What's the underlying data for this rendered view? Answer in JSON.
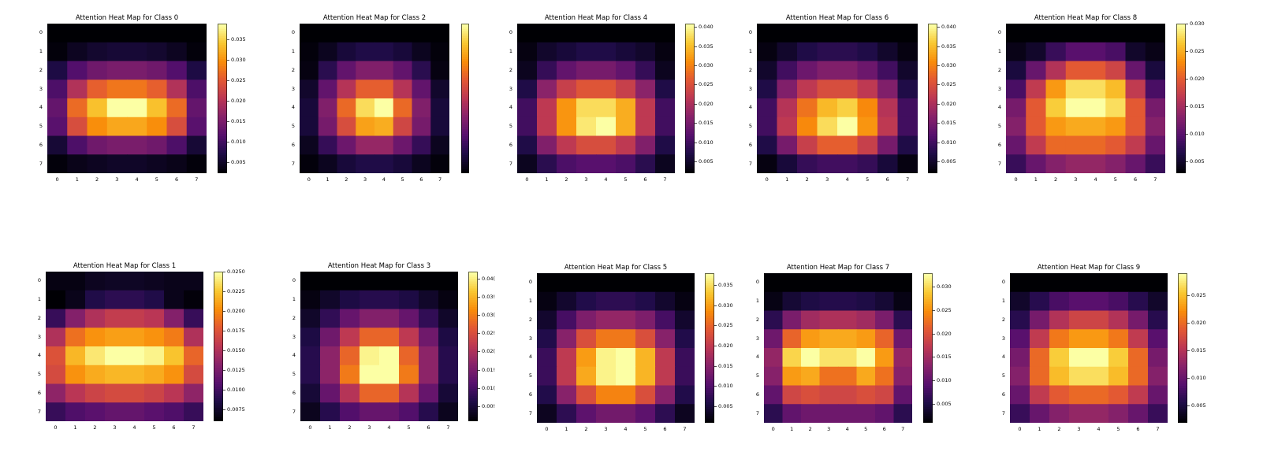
{
  "colormap": "inferno",
  "chart_data": [
    {
      "type": "heatmap",
      "title": "Attention Heat Map for Class 0",
      "x": [
        0,
        1,
        2,
        3,
        4,
        5,
        6,
        7
      ],
      "y": [
        0,
        1,
        2,
        3,
        4,
        5,
        6,
        7
      ],
      "values": [
        [
          0.0025,
          0.0025,
          0.0025,
          0.0025,
          0.0025,
          0.0025,
          0.0025,
          0.0025
        ],
        [
          0.003,
          0.0045,
          0.0055,
          0.006,
          0.006,
          0.0055,
          0.0045,
          0.003
        ],
        [
          0.007,
          0.0115,
          0.014,
          0.015,
          0.015,
          0.014,
          0.0115,
          0.007
        ],
        [
          0.011,
          0.02,
          0.026,
          0.028,
          0.028,
          0.026,
          0.02,
          0.011
        ],
        [
          0.013,
          0.027,
          0.034,
          0.039,
          0.039,
          0.034,
          0.027,
          0.013
        ],
        [
          0.012,
          0.024,
          0.03,
          0.032,
          0.032,
          0.03,
          0.024,
          0.012
        ],
        [
          0.006,
          0.011,
          0.014,
          0.015,
          0.015,
          0.014,
          0.011,
          0.006
        ],
        [
          0.003,
          0.004,
          0.0045,
          0.005,
          0.005,
          0.0045,
          0.004,
          0.003
        ]
      ],
      "vmin": 0.0025,
      "vmax": 0.039,
      "colorbar_ticks": [
        0.005,
        0.01,
        0.015,
        0.02,
        0.025,
        0.03,
        0.035
      ],
      "colorbar_labels": [
        "0.005",
        "0.010",
        "0.015",
        "0.020",
        "0.025",
        "0.030",
        "0.035"
      ]
    },
    {
      "type": "heatmap",
      "title": "Attention Heat Map for Class 2",
      "x": [
        0,
        1,
        2,
        3,
        4,
        5,
        6,
        7
      ],
      "y": [
        0,
        1,
        2,
        3,
        4,
        5,
        6,
        7
      ],
      "values": [
        [
          0.001,
          0.001,
          0.001,
          0.001,
          0.001,
          0.001,
          0.001,
          0.001
        ],
        [
          0.0015,
          0.003,
          0.005,
          0.006,
          0.006,
          0.005,
          0.003,
          0.0015
        ],
        [
          0.002,
          0.007,
          0.012,
          0.015,
          0.015,
          0.012,
          0.007,
          0.002
        ],
        [
          0.004,
          0.012,
          0.02,
          0.026,
          0.026,
          0.02,
          0.012,
          0.004
        ],
        [
          0.005,
          0.015,
          0.027,
          0.037,
          0.04,
          0.027,
          0.015,
          0.005
        ],
        [
          0.005,
          0.014,
          0.024,
          0.032,
          0.033,
          0.023,
          0.014,
          0.005
        ],
        [
          0.003,
          0.008,
          0.013,
          0.017,
          0.017,
          0.013,
          0.008,
          0.003
        ],
        [
          0.0015,
          0.003,
          0.005,
          0.006,
          0.006,
          0.005,
          0.003,
          0.0015
        ]
      ],
      "vmin": 0.001,
      "vmax": 0.04,
      "colorbar_ticks": [],
      "colorbar_labels": []
    },
    {
      "type": "heatmap",
      "title": "Attention Heat Map for Class 4",
      "x": [
        0,
        1,
        2,
        3,
        4,
        5,
        6,
        7
      ],
      "y": [
        0,
        1,
        2,
        3,
        4,
        5,
        6,
        7
      ],
      "values": [
        [
          0.002,
          0.002,
          0.002,
          0.002,
          0.002,
          0.002,
          0.002,
          0.002
        ],
        [
          0.003,
          0.005,
          0.006,
          0.007,
          0.007,
          0.006,
          0.005,
          0.003
        ],
        [
          0.004,
          0.009,
          0.013,
          0.015,
          0.015,
          0.013,
          0.009,
          0.004
        ],
        [
          0.007,
          0.017,
          0.023,
          0.026,
          0.026,
          0.023,
          0.017,
          0.007
        ],
        [
          0.01,
          0.022,
          0.032,
          0.038,
          0.038,
          0.034,
          0.022,
          0.01
        ],
        [
          0.01,
          0.022,
          0.032,
          0.039,
          0.041,
          0.034,
          0.022,
          0.01
        ],
        [
          0.007,
          0.016,
          0.022,
          0.025,
          0.025,
          0.022,
          0.016,
          0.007
        ],
        [
          0.004,
          0.008,
          0.011,
          0.012,
          0.012,
          0.011,
          0.008,
          0.004
        ]
      ],
      "vmin": 0.002,
      "vmax": 0.041,
      "colorbar_ticks": [
        0.005,
        0.01,
        0.015,
        0.02,
        0.025,
        0.03,
        0.035,
        0.04
      ],
      "colorbar_labels": [
        "0.005",
        "0.010",
        "0.015",
        "0.020",
        "0.025",
        "0.030",
        "0.035",
        "0.040"
      ]
    },
    {
      "type": "heatmap",
      "title": "Attention Heat Map for Class 6",
      "x": [
        0,
        1,
        2,
        3,
        4,
        5,
        6,
        7
      ],
      "y": [
        0,
        1,
        2,
        3,
        4,
        5,
        6,
        7
      ],
      "values": [
        [
          0.002,
          0.002,
          0.002,
          0.002,
          0.002,
          0.002,
          0.002,
          0.002
        ],
        [
          0.003,
          0.005,
          0.007,
          0.008,
          0.008,
          0.007,
          0.005,
          0.003
        ],
        [
          0.005,
          0.01,
          0.014,
          0.016,
          0.016,
          0.014,
          0.01,
          0.005
        ],
        [
          0.007,
          0.016,
          0.022,
          0.025,
          0.025,
          0.022,
          0.016,
          0.007
        ],
        [
          0.01,
          0.021,
          0.029,
          0.035,
          0.037,
          0.031,
          0.021,
          0.01
        ],
        [
          0.01,
          0.022,
          0.031,
          0.038,
          0.041,
          0.032,
          0.022,
          0.01
        ],
        [
          0.007,
          0.015,
          0.023,
          0.027,
          0.027,
          0.023,
          0.015,
          0.007
        ],
        [
          0.003,
          0.006,
          0.009,
          0.01,
          0.01,
          0.009,
          0.006,
          0.003
        ]
      ],
      "vmin": 0.002,
      "vmax": 0.041,
      "colorbar_ticks": [
        0.005,
        0.01,
        0.015,
        0.02,
        0.025,
        0.03,
        0.035,
        0.04
      ],
      "colorbar_labels": [
        "0.005",
        "0.010",
        "0.015",
        "0.020",
        "0.025",
        "0.030",
        "0.035",
        "0.040"
      ]
    },
    {
      "type": "heatmap",
      "title": "Attention Heat Map for Class 8",
      "x": [
        0,
        1,
        2,
        3,
        4,
        5,
        6,
        7
      ],
      "y": [
        0,
        1,
        2,
        3,
        4,
        5,
        6,
        7
      ],
      "values": [
        [
          0.003,
          0.003,
          0.003,
          0.003,
          0.003,
          0.003,
          0.003,
          0.003
        ],
        [
          0.004,
          0.005,
          0.008,
          0.01,
          0.01,
          0.009,
          0.005,
          0.004
        ],
        [
          0.006,
          0.011,
          0.016,
          0.02,
          0.02,
          0.018,
          0.011,
          0.006
        ],
        [
          0.009,
          0.017,
          0.024,
          0.028,
          0.028,
          0.026,
          0.017,
          0.009
        ],
        [
          0.012,
          0.02,
          0.027,
          0.03,
          0.03,
          0.028,
          0.02,
          0.012
        ],
        [
          0.013,
          0.02,
          0.024,
          0.025,
          0.025,
          0.024,
          0.02,
          0.013
        ],
        [
          0.011,
          0.017,
          0.021,
          0.021,
          0.021,
          0.02,
          0.017,
          0.011
        ],
        [
          0.008,
          0.011,
          0.013,
          0.014,
          0.014,
          0.013,
          0.011,
          0.008
        ]
      ],
      "vmin": 0.003,
      "vmax": 0.03,
      "colorbar_ticks": [
        0.005,
        0.01,
        0.015,
        0.02,
        0.025,
        0.03
      ],
      "colorbar_labels": [
        "0.005",
        "0.010",
        "0.015",
        "0.020",
        "0.025",
        "0.030"
      ]
    },
    {
      "type": "heatmap",
      "title": "Attention Heat Map for Class 1",
      "x": [
        0,
        1,
        2,
        3,
        4,
        5,
        6,
        7
      ],
      "y": [
        0,
        1,
        2,
        3,
        4,
        5,
        6,
        7
      ],
      "values": [
        [
          0.0065,
          0.0065,
          0.007,
          0.0072,
          0.0072,
          0.007,
          0.0068,
          0.0068
        ],
        [
          0.006,
          0.0068,
          0.0085,
          0.009,
          0.009,
          0.0085,
          0.0068,
          0.0062
        ],
        [
          0.0095,
          0.013,
          0.015,
          0.016,
          0.016,
          0.0155,
          0.013,
          0.0095
        ],
        [
          0.015,
          0.019,
          0.0205,
          0.021,
          0.021,
          0.0205,
          0.0195,
          0.015
        ],
        [
          0.0175,
          0.022,
          0.024,
          0.025,
          0.025,
          0.0245,
          0.0225,
          0.0185
        ],
        [
          0.017,
          0.0205,
          0.0215,
          0.022,
          0.022,
          0.0215,
          0.0205,
          0.017
        ],
        [
          0.0135,
          0.0155,
          0.0165,
          0.017,
          0.017,
          0.0165,
          0.0155,
          0.0135
        ],
        [
          0.0095,
          0.0105,
          0.011,
          0.0115,
          0.0115,
          0.011,
          0.0105,
          0.0095
        ]
      ],
      "vmin": 0.006,
      "vmax": 0.025,
      "colorbar_ticks": [
        0.0075,
        0.01,
        0.0125,
        0.015,
        0.0175,
        0.02,
        0.0225,
        0.025
      ],
      "colorbar_labels": [
        "0.0075",
        "0.0100",
        "0.0125",
        "0.0150",
        "0.0175",
        "0.0200",
        "0.0225",
        "0.0250"
      ]
    },
    {
      "type": "heatmap",
      "title": "Attention Heat Map for Class 3",
      "x": [
        0,
        1,
        2,
        3,
        4,
        5,
        6,
        7
      ],
      "y": [
        0,
        1,
        2,
        3,
        4,
        5,
        6,
        7
      ],
      "values": [
        [
          0.001,
          0.001,
          0.001,
          0.001,
          0.001,
          0.001,
          0.001,
          0.001
        ],
        [
          0.002,
          0.004,
          0.006,
          0.007,
          0.007,
          0.006,
          0.004,
          0.002
        ],
        [
          0.004,
          0.008,
          0.013,
          0.016,
          0.016,
          0.013,
          0.008,
          0.004
        ],
        [
          0.006,
          0.014,
          0.022,
          0.028,
          0.028,
          0.022,
          0.014,
          0.006
        ],
        [
          0.007,
          0.017,
          0.028,
          0.041,
          0.042,
          0.028,
          0.017,
          0.007
        ],
        [
          0.007,
          0.017,
          0.03,
          0.042,
          0.042,
          0.03,
          0.017,
          0.007
        ],
        [
          0.005,
          0.013,
          0.021,
          0.028,
          0.028,
          0.021,
          0.013,
          0.005
        ],
        [
          0.003,
          0.007,
          0.011,
          0.013,
          0.013,
          0.011,
          0.007,
          0.003
        ]
      ],
      "vmin": 0.001,
      "vmax": 0.042,
      "colorbar_ticks": [
        0.005,
        0.01,
        0.015,
        0.02,
        0.025,
        0.03,
        0.035,
        0.04
      ],
      "colorbar_labels": [
        "0.00!",
        "0.01(",
        "0.01!",
        "0.02(",
        "0.02!",
        "0.03(",
        "0.03!",
        "0.04("
      ]
    },
    {
      "type": "heatmap",
      "title": "Attention Heat Map for Class 5",
      "x": [
        0,
        1,
        2,
        3,
        4,
        5,
        6,
        7
      ],
      "y": [
        0,
        1,
        2,
        3,
        4,
        5,
        6,
        7
      ],
      "values": [
        [
          0.001,
          0.001,
          0.001,
          0.001,
          0.001,
          0.001,
          0.001,
          0.001
        ],
        [
          0.002,
          0.004,
          0.006,
          0.007,
          0.007,
          0.006,
          0.004,
          0.002
        ],
        [
          0.004,
          0.009,
          0.014,
          0.016,
          0.016,
          0.014,
          0.009,
          0.004
        ],
        [
          0.006,
          0.015,
          0.023,
          0.027,
          0.027,
          0.023,
          0.015,
          0.006
        ],
        [
          0.008,
          0.02,
          0.03,
          0.037,
          0.038,
          0.032,
          0.02,
          0.008
        ],
        [
          0.008,
          0.02,
          0.031,
          0.037,
          0.038,
          0.032,
          0.02,
          0.008
        ],
        [
          0.006,
          0.015,
          0.023,
          0.028,
          0.028,
          0.023,
          0.015,
          0.006
        ],
        [
          0.003,
          0.007,
          0.011,
          0.013,
          0.013,
          0.011,
          0.007,
          0.003
        ]
      ],
      "vmin": 0.001,
      "vmax": 0.038,
      "colorbar_ticks": [
        0.005,
        0.01,
        0.015,
        0.02,
        0.025,
        0.03,
        0.035
      ],
      "colorbar_labels": [
        "0.005",
        "0.010",
        "0.015",
        "0.020",
        "0.025",
        "0.030",
        "0.035"
      ]
    },
    {
      "type": "heatmap",
      "title": "Attention Heat Map for Class 7",
      "x": [
        0,
        1,
        2,
        3,
        4,
        5,
        6,
        7
      ],
      "y": [
        0,
        1,
        2,
        3,
        4,
        5,
        6,
        7
      ],
      "values": [
        [
          0.001,
          0.001,
          0.001,
          0.001,
          0.001,
          0.001,
          0.001,
          0.001
        ],
        [
          0.002,
          0.004,
          0.005,
          0.0055,
          0.0055,
          0.005,
          0.004,
          0.002
        ],
        [
          0.006,
          0.012,
          0.015,
          0.016,
          0.016,
          0.015,
          0.012,
          0.006
        ],
        [
          0.011,
          0.022,
          0.026,
          0.027,
          0.027,
          0.026,
          0.022,
          0.011
        ],
        [
          0.014,
          0.03,
          0.033,
          0.031,
          0.031,
          0.033,
          0.026,
          0.014
        ],
        [
          0.013,
          0.026,
          0.027,
          0.023,
          0.023,
          0.027,
          0.023,
          0.013
        ],
        [
          0.01,
          0.019,
          0.02,
          0.019,
          0.019,
          0.02,
          0.019,
          0.01
        ],
        [
          0.006,
          0.01,
          0.011,
          0.011,
          0.011,
          0.011,
          0.01,
          0.006
        ]
      ],
      "vmin": 0.001,
      "vmax": 0.033,
      "colorbar_ticks": [
        0.005,
        0.01,
        0.015,
        0.02,
        0.025,
        0.03
      ],
      "colorbar_labels": [
        "0.005",
        "0.010",
        "0.015",
        "0.020",
        "0.025",
        "0.030"
      ]
    },
    {
      "type": "heatmap",
      "title": "Attention Heat Map for Class 9",
      "x": [
        0,
        1,
        2,
        3,
        4,
        5,
        6,
        7
      ],
      "y": [
        0,
        1,
        2,
        3,
        4,
        5,
        6,
        7
      ],
      "values": [
        [
          0.002,
          0.002,
          0.002,
          0.002,
          0.002,
          0.002,
          0.002,
          0.002
        ],
        [
          0.004,
          0.006,
          0.008,
          0.009,
          0.009,
          0.008,
          0.006,
          0.004
        ],
        [
          0.006,
          0.011,
          0.015,
          0.017,
          0.017,
          0.015,
          0.011,
          0.006
        ],
        [
          0.009,
          0.016,
          0.021,
          0.023,
          0.023,
          0.021,
          0.016,
          0.009
        ],
        [
          0.011,
          0.02,
          0.026,
          0.029,
          0.029,
          0.026,
          0.02,
          0.011
        ],
        [
          0.012,
          0.02,
          0.025,
          0.027,
          0.027,
          0.025,
          0.02,
          0.012
        ],
        [
          0.01,
          0.016,
          0.019,
          0.02,
          0.02,
          0.019,
          0.016,
          0.01
        ],
        [
          0.007,
          0.01,
          0.012,
          0.013,
          0.013,
          0.012,
          0.01,
          0.007
        ]
      ],
      "vmin": 0.002,
      "vmax": 0.029,
      "colorbar_ticks": [
        0.005,
        0.01,
        0.015,
        0.02,
        0.025
      ],
      "colorbar_labels": [
        "0.005",
        "0.010",
        "0.015",
        "0.020",
        "0.025"
      ]
    }
  ]
}
